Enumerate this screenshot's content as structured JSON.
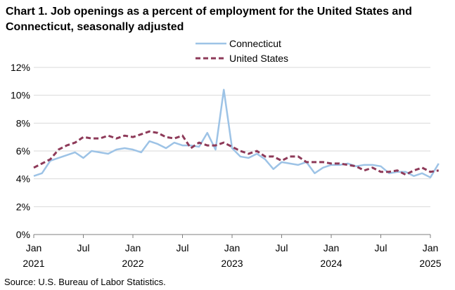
{
  "title": "Chart 1. Job openings as a percent of employment for the United States and Connecticut, seasonally adjusted",
  "source": "Source: U.S. Bureau of Labor Statistics.",
  "chart_data": {
    "type": "line",
    "title": "Chart 1. Job openings as a percent of employment for the United States and Connecticut, seasonally adjusted",
    "xlabel": "",
    "ylabel": "",
    "ylim": [
      0,
      12
    ],
    "yticks": [
      0,
      2,
      4,
      6,
      8,
      10,
      12
    ],
    "y_format": "{v}%",
    "grid": true,
    "legend_position": "top-center",
    "x_tick_labels": [
      {
        "month_index": 0,
        "line1": "Jan",
        "line2": "2021"
      },
      {
        "month_index": 6,
        "line1": "Jul",
        "line2": ""
      },
      {
        "month_index": 12,
        "line1": "Jan",
        "line2": "2022"
      },
      {
        "month_index": 18,
        "line1": "Jul",
        "line2": ""
      },
      {
        "month_index": 24,
        "line1": "Jan",
        "line2": "2023"
      },
      {
        "month_index": 30,
        "line1": "Jul",
        "line2": ""
      },
      {
        "month_index": 36,
        "line1": "Jan",
        "line2": "2024"
      },
      {
        "month_index": 42,
        "line1": "Jul",
        "line2": ""
      },
      {
        "month_index": 48,
        "line1": "Jan",
        "line2": "2025"
      }
    ],
    "months_span": 48,
    "series": [
      {
        "name": "Connecticut",
        "color": "#9dc3e6",
        "style": "solid",
        "values": [
          4.2,
          4.4,
          5.3,
          5.5,
          5.7,
          5.9,
          5.5,
          6.0,
          5.9,
          5.8,
          6.1,
          6.2,
          6.1,
          5.9,
          6.7,
          6.5,
          6.2,
          6.6,
          6.4,
          6.4,
          6.3,
          7.3,
          6.1,
          10.4,
          6.2,
          5.6,
          5.5,
          5.8,
          5.4,
          4.7,
          5.2,
          5.1,
          5.0,
          5.2,
          4.4,
          4.8,
          5.0,
          5.0,
          5.1,
          4.9,
          5.0,
          5.0,
          4.9,
          4.4,
          4.5,
          4.5,
          4.2,
          4.4,
          4.1,
          5.1
        ]
      },
      {
        "name": "United States",
        "color": "#8e3a59",
        "style": "dashed",
        "values": [
          4.8,
          5.1,
          5.4,
          6.1,
          6.4,
          6.6,
          7.0,
          6.9,
          6.9,
          7.1,
          6.9,
          7.1,
          7.0,
          7.2,
          7.4,
          7.3,
          7.0,
          6.9,
          7.1,
          6.2,
          6.6,
          6.4,
          6.4,
          6.6,
          6.3,
          6.0,
          5.8,
          6.0,
          5.6,
          5.6,
          5.3,
          5.6,
          5.6,
          5.2,
          5.2,
          5.2,
          5.1,
          5.1,
          5.0,
          4.9,
          4.6,
          4.8,
          4.5,
          4.5,
          4.6,
          4.3,
          4.6,
          4.8,
          4.5,
          4.6
        ]
      }
    ]
  }
}
